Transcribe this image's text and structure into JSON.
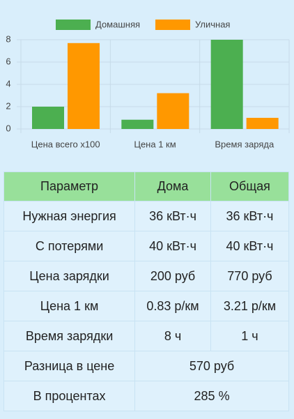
{
  "chart_data": {
    "type": "bar",
    "categories": [
      "Цена всего x100",
      "Цена 1 км",
      "Время заряда"
    ],
    "series": [
      {
        "name": "Домашняя",
        "color": "#4caf50",
        "values": [
          2,
          0.83,
          8
        ]
      },
      {
        "name": "Уличная",
        "color": "#ff9800",
        "values": [
          7.7,
          3.21,
          1
        ]
      }
    ],
    "ylim": [
      0,
      8
    ],
    "yticks": [
      0,
      2,
      4,
      6,
      8
    ],
    "grid": true
  },
  "table": {
    "header": [
      "Параметр",
      "Дома",
      "Общая"
    ],
    "rows": [
      [
        "Нужная энергия",
        "36 кВт·ч",
        "36 кВт·ч"
      ],
      [
        "С потерями",
        "40 кВт·ч",
        "40 кВт·ч"
      ],
      [
        "Цена зарядки",
        "200 руб",
        "770 руб"
      ],
      [
        "Цена 1 км",
        "0.83 р/км",
        "3.21 р/км"
      ],
      [
        "Время зарядки",
        "8 ч",
        "1 ч"
      ],
      [
        "Разница в цене",
        "570 руб"
      ],
      [
        "В процентах",
        "285 %"
      ]
    ]
  }
}
